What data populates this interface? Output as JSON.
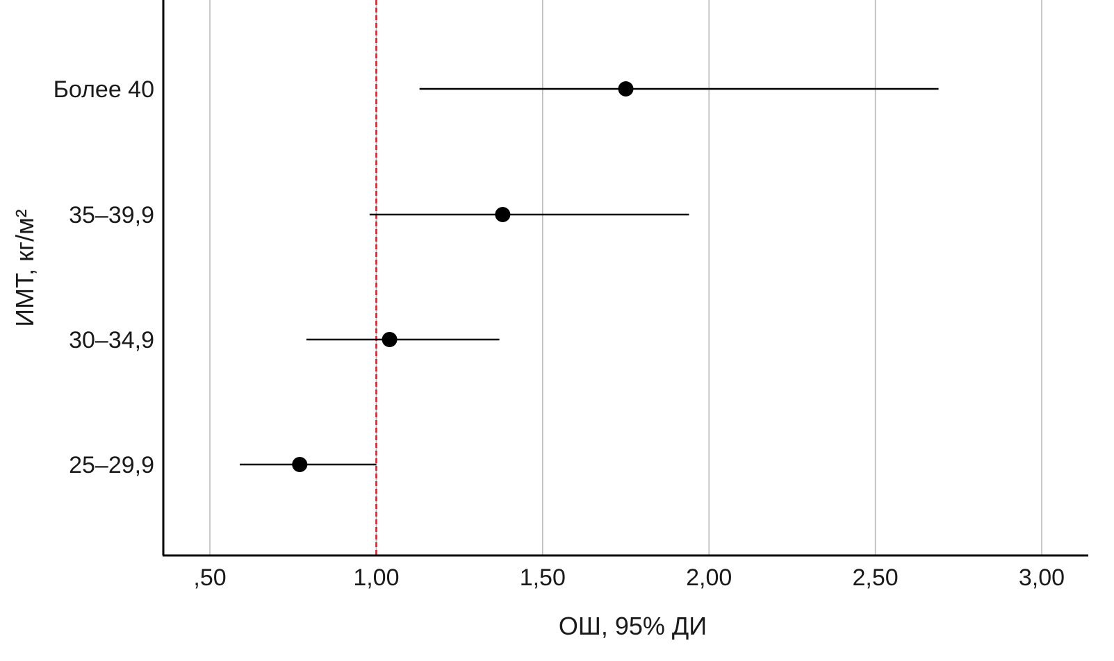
{
  "chart_data": {
    "type": "forest",
    "xlabel": "ОШ, 95% ДИ",
    "ylabel": "ИМТ, кг/м²",
    "xlim": [
      0.36,
      3.14
    ],
    "xticks": [
      0.5,
      1.0,
      1.5,
      2.0,
      2.5,
      3.0
    ],
    "xtick_labels": [
      ",50",
      "1,00",
      "1,50",
      "2,00",
      "2,50",
      "3,00"
    ],
    "reference_line": 1.0,
    "reference_color": "#d0202a",
    "grid": "vertical",
    "categories": [
      "Более 40",
      "35–39,9",
      "30–34,9",
      "25–29,9"
    ],
    "points": [
      {
        "label": "Более 40",
        "or": 1.75,
        "ci_low": 1.13,
        "ci_high": 2.69
      },
      {
        "label": "35–39,9",
        "or": 1.38,
        "ci_low": 0.98,
        "ci_high": 1.94
      },
      {
        "label": "30–34,9",
        "or": 1.04,
        "ci_low": 0.79,
        "ci_high": 1.37
      },
      {
        "label": "25–29,9",
        "or": 0.77,
        "ci_low": 0.59,
        "ci_high": 1.0
      }
    ]
  }
}
